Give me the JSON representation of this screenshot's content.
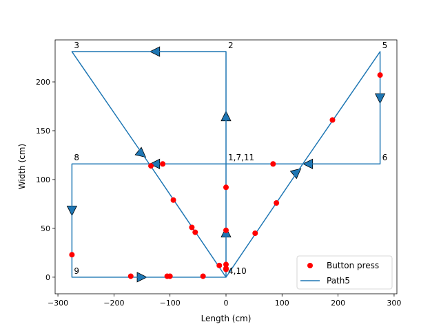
{
  "chart_data": {
    "type": "line",
    "title": "",
    "xlabel": "Length (cm)",
    "ylabel": "Width (cm)",
    "xlim": [
      -305,
      305
    ],
    "ylim": [
      -17,
      243
    ],
    "xticks": [
      -300,
      -200,
      -100,
      0,
      100,
      200,
      300
    ],
    "yticks": [
      0,
      50,
      100,
      150,
      200
    ],
    "grid": false,
    "legend_position": "lower right",
    "path": {
      "name": "Path5",
      "color": "#1f77b4",
      "x": [
        0,
        0,
        0,
        -275,
        -137,
        0,
        137,
        275,
        275,
        137,
        0,
        -275,
        -275,
        -137,
        0,
        0
      ],
      "y": [
        116,
        116,
        231,
        231,
        116,
        0,
        116,
        231,
        116,
        116,
        116,
        116,
        0,
        0,
        0,
        116
      ]
    },
    "direction_arrows": [
      {
        "x": 0,
        "y": 46,
        "dx": 0,
        "dy": 1
      },
      {
        "x": 0,
        "y": 165,
        "dx": 0,
        "dy": 1
      },
      {
        "x": -127,
        "y": 231,
        "dx": -1,
        "dy": 0
      },
      {
        "x": -150,
        "y": 126,
        "dx": 0.77,
        "dy": -0.64
      },
      {
        "x": 127,
        "y": 108,
        "dx": 0.77,
        "dy": 0.64
      },
      {
        "x": 275,
        "y": 183,
        "dx": 0,
        "dy": -1
      },
      {
        "x": 146,
        "y": 116,
        "dx": -1,
        "dy": 0
      },
      {
        "x": -127,
        "y": 116,
        "dx": -1,
        "dy": 0
      },
      {
        "x": -275,
        "y": 68,
        "dx": 0,
        "dy": -1
      },
      {
        "x": -150,
        "y": 0,
        "dx": 1,
        "dy": 0
      }
    ],
    "button_presses": {
      "name": "Button press",
      "color": "#ff0000",
      "x": [
        -113,
        84,
        0,
        0,
        -94,
        -61,
        -55,
        -12,
        0,
        0,
        52,
        90,
        190,
        275,
        -275,
        -170,
        -105,
        -100,
        -41,
        0,
        -134
      ],
      "y": [
        116,
        116,
        92,
        48,
        79,
        51,
        46,
        12,
        13,
        9,
        45,
        76,
        161,
        207,
        23,
        1,
        1,
        1,
        1,
        8,
        114
      ]
    },
    "point_labels": [
      {
        "text": "1,7,11",
        "x": 0,
        "y": 116
      },
      {
        "text": "2",
        "x": 0,
        "y": 231
      },
      {
        "text": "3",
        "x": -275,
        "y": 231
      },
      {
        "text": "4,10",
        "x": 0,
        "y": 0
      },
      {
        "text": "5",
        "x": 275,
        "y": 231
      },
      {
        "text": "6",
        "x": 275,
        "y": 116
      },
      {
        "text": "8",
        "x": -275,
        "y": 116
      },
      {
        "text": "9",
        "x": -275,
        "y": 0
      }
    ]
  }
}
